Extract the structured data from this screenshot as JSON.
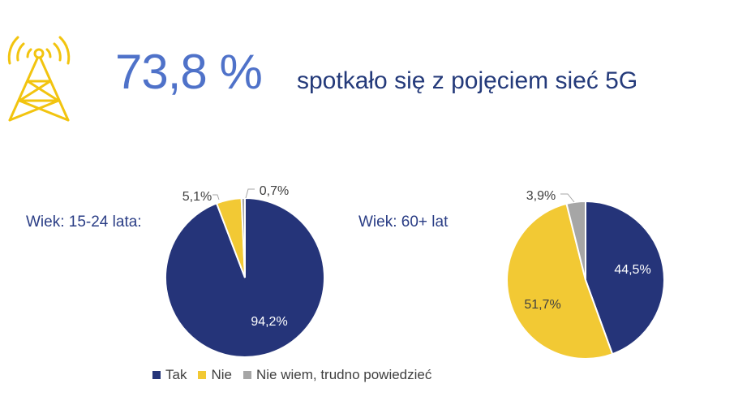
{
  "header": {
    "value": "73,8 %",
    "text": "spotkało się z pojęciem sieć 5G"
  },
  "colors": {
    "tak": "#253479",
    "nie": "#f2c934",
    "nie_wiem": "#a6a6a6",
    "headline": "#4f72c9",
    "icon": "#f2c40f"
  },
  "icons": {
    "tower": "antenna-tower-icon"
  },
  "chart_data": [
    {
      "type": "pie",
      "group_label": "Wiek: 15-24 lata:",
      "slices": [
        {
          "name": "Tak",
          "value": 94.2,
          "label": "94,2%"
        },
        {
          "name": "Nie",
          "value": 5.1,
          "label": "5,1%"
        },
        {
          "name": "Nie wiem, trudno powiedzieć",
          "value": 0.7,
          "label": "0,7%"
        }
      ]
    },
    {
      "type": "pie",
      "group_label": "Wiek: 60+ lat",
      "slices": [
        {
          "name": "Tak",
          "value": 44.5,
          "label": "44,5%"
        },
        {
          "name": "Nie",
          "value": 51.7,
          "label": "51,7%"
        },
        {
          "name": "Nie wiem, trudno powiedzieć",
          "value": 3.9,
          "label": "3,9%"
        }
      ]
    }
  ],
  "legend": [
    "Tak",
    "Nie",
    "Nie wiem, trudno powiedzieć"
  ]
}
